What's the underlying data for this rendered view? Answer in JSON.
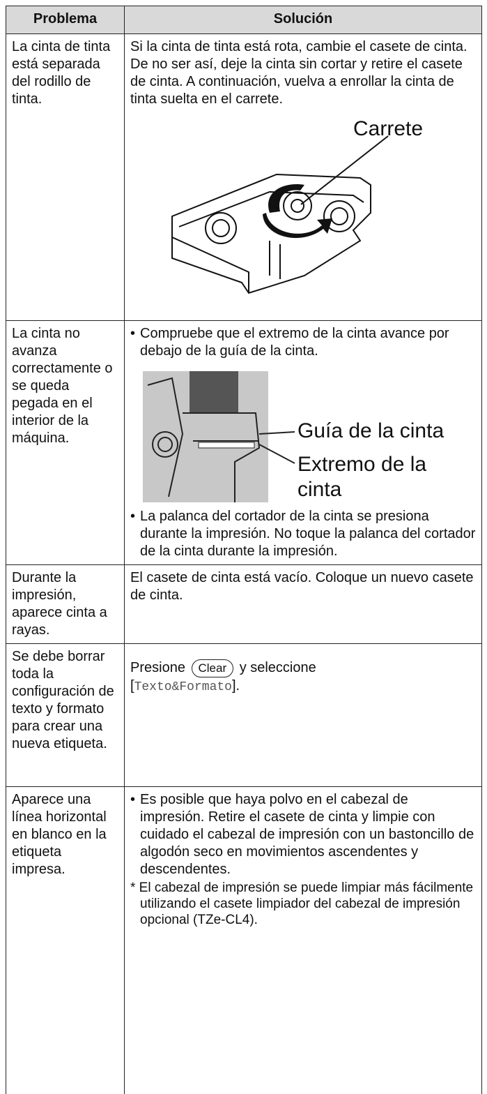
{
  "table": {
    "header": [
      "Problema",
      "Solución"
    ],
    "rows": [
      {
        "problem": "La cinta de tinta está separada del rodillo de tinta.",
        "solution": "Si la cinta de tinta está rota, cambie el casete de cinta. De no ser así, deje la cinta sin cortar y retire el casete de cinta. A continuación, vuelva a enrollar la cinta de tinta suelta en el carrete.",
        "figure_label": "Carrete"
      },
      {
        "problem": "La cinta no avanza correctamente o se queda pegada en el interior de la máquina.",
        "bullets": [
          "Compruebe que el extremo de la cinta avance por debajo de la guía de la cinta.",
          "La palanca del cortador de la cinta se presiona durante la impresión. No toque la palanca del cortador de la cinta durante la impresión."
        ],
        "figure_labels": [
          "Guía de la cinta",
          "Extremo de la cinta"
        ]
      },
      {
        "problem": "Durante la impresión, aparece cinta a rayas.",
        "solution": "El casete de cinta está vacío. Coloque un nuevo casete de cinta."
      },
      {
        "problem": "Se debe borrar toda la configuración de texto y formato para crear una nueva etiqueta.",
        "solution_parts": {
          "before": "Presione",
          "key": "Clear",
          "middle": "y seleccione",
          "open": "[",
          "code": "Texto&Formato",
          "close": "]."
        }
      },
      {
        "problem": "Aparece una línea horizontal en blanco en la etiqueta impresa.",
        "bullets": [
          "Es posible que haya polvo en el cabezal de impresión. Retire el casete de cinta y limpie con cuidado el cabezal de impresión con un bastoncillo de algodón seco en movimientos ascendentes y descendentes."
        ],
        "note": "* El cabezal de impresión se puede limpiar más fácilmente utilizando el casete limpiador del cabezal de impresión opcional (TZe-CL4)."
      }
    ]
  }
}
